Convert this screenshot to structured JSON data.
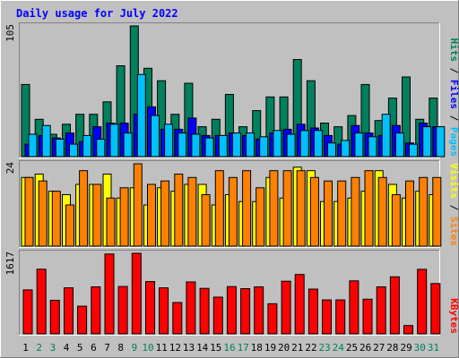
{
  "chart_data": {
    "type": "bar",
    "title": "Daily usage for July 2022",
    "categories": [
      "1",
      "2",
      "3",
      "4",
      "5",
      "6",
      "7",
      "8",
      "9",
      "10",
      "11",
      "12",
      "13",
      "14",
      "15",
      "16",
      "17",
      "18",
      "19",
      "20",
      "21",
      "22",
      "23",
      "24",
      "25",
      "26",
      "27",
      "28",
      "29",
      "30",
      "31"
    ],
    "weekend_days": [
      "2",
      "3",
      "9",
      "10",
      "16",
      "17",
      "23",
      "24",
      "30",
      "31"
    ],
    "panels": [
      {
        "id": "hits",
        "scale_max_label": "105",
        "legend": [
          {
            "label": "Pages",
            "color": "#00c0ff"
          },
          {
            "label": "Files",
            "color": "#0000ff"
          },
          {
            "label": "Hits",
            "color": "#00805c"
          }
        ],
        "series": [
          {
            "name": "Hits",
            "color": "#00805c",
            "values": [
              58,
              30,
              18,
              26,
              34,
              34,
              44,
              73,
              105,
              71,
              61,
              34,
              59,
              24,
              30,
              50,
              24,
              37,
              48,
              48,
              78,
              61,
              27,
              24,
              33,
              58,
              29,
              47,
              64,
              30,
              47
            ]
          },
          {
            "name": "Files",
            "color": "#0000ff",
            "values": [
              10,
              17,
              15,
              19,
              12,
              24,
              27,
              27,
              34,
              40,
              22,
              22,
              31,
              17,
              17,
              19,
              17,
              14,
              19,
              22,
              26,
              23,
              17,
              10,
              25,
              19,
              17,
              25,
              11,
              27,
              24
            ]
          },
          {
            "name": "Pages",
            "color": "#00c0ff",
            "values": [
              18,
              25,
              14,
              10,
              17,
              14,
              26,
              19,
              66,
              33,
              26,
              19,
              18,
              15,
              17,
              19,
              19,
              16,
              21,
              18,
              21,
              21,
              11,
              13,
              19,
              16,
              34,
              19,
              10,
              24,
              24
            ]
          }
        ]
      },
      {
        "id": "visits",
        "scale_max_label": "24",
        "legend": [
          {
            "label": "Sites",
            "color": "#ff8000"
          },
          {
            "label": "Visits",
            "color": "#ffff00"
          }
        ],
        "series": [
          {
            "name": "Visits",
            "color": "#ffff00",
            "values": [
              20,
              21,
              16,
              15,
              18,
              18,
              21,
              14,
              17,
              12,
              17,
              16,
              18,
              18,
              12,
              15,
              13,
              13,
              20,
              14,
              23,
              22,
              13,
              13,
              14,
              16,
              22,
              18,
              14,
              16,
              15
            ]
          },
          {
            "name": "Sites",
            "color": "#ff8000",
            "values": [
              20,
              19,
              16,
              12,
              22,
              18,
              14,
              17,
              24,
              18,
              19,
              21,
              20,
              15,
              22,
              20,
              22,
              17,
              22,
              22,
              22,
              20,
              19,
              19,
              20,
              22,
              20,
              15,
              19,
              20,
              20
            ]
          }
        ]
      },
      {
        "id": "kbytes",
        "scale_max_label": "1617",
        "legend": [
          {
            "label": "KBytes",
            "color": "#ff0000"
          }
        ],
        "series": [
          {
            "name": "KBytes",
            "color": "#ff0000",
            "values": [
              876,
              1288,
              668,
              917,
              551,
              937,
              1591,
              944,
              1605,
              1042,
              917,
              624,
              1035,
              906,
              731,
              941,
              900,
              937,
              599,
              1049,
              1182,
              891,
              676,
              676,
              1056,
              691,
              937,
              1136,
              165,
              1285,
              1003
            ]
          }
        ]
      }
    ]
  }
}
